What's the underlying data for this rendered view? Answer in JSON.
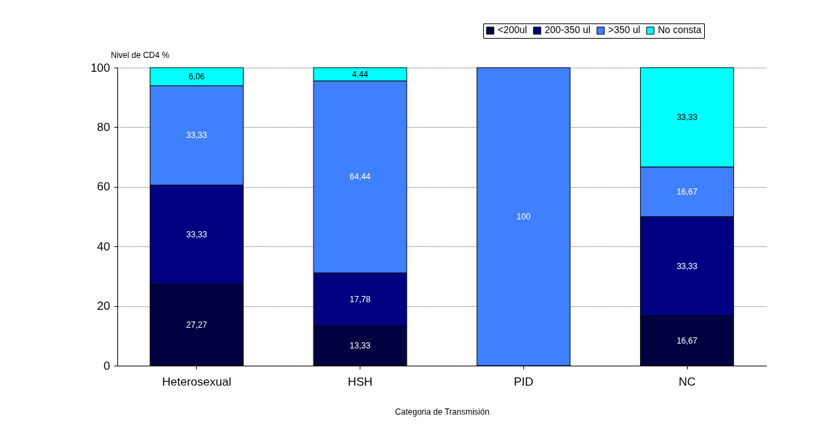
{
  "chart_data": {
    "type": "bar",
    "stacked": true,
    "xlabel": "Categoria de Transmisión",
    "ylabel": "Nivel de CD4 %",
    "categories": [
      "Heterosexual",
      "HSH",
      "PID",
      "NC"
    ],
    "series": [
      {
        "name": "<200ul",
        "color": "#000040",
        "values": [
          27.27,
          13.33,
          null,
          16.67
        ],
        "value_labels": [
          "27,27",
          "13,33",
          null,
          "16,67"
        ]
      },
      {
        "name": "200-350 ul",
        "color": "#000080",
        "values": [
          33.33,
          17.78,
          null,
          33.33
        ],
        "value_labels": [
          "33,33",
          "17,78",
          null,
          "33,33"
        ]
      },
      {
        "name": ">350 ul",
        "color": "#4080ff",
        "values": [
          33.33,
          64.44,
          100,
          16.67
        ],
        "value_labels": [
          "33,33",
          "64,44",
          "100",
          "16,67"
        ]
      },
      {
        "name": "No consta",
        "color": "#00ffff",
        "values": [
          6.06,
          4.44,
          null,
          33.33
        ],
        "value_labels": [
          "6,06",
          "4,44",
          null,
          "33,33"
        ]
      }
    ],
    "ylim": [
      0,
      100
    ],
    "yticks": [
      0,
      20,
      40,
      60,
      80,
      100
    ],
    "grid": "y",
    "legend": "top right"
  }
}
